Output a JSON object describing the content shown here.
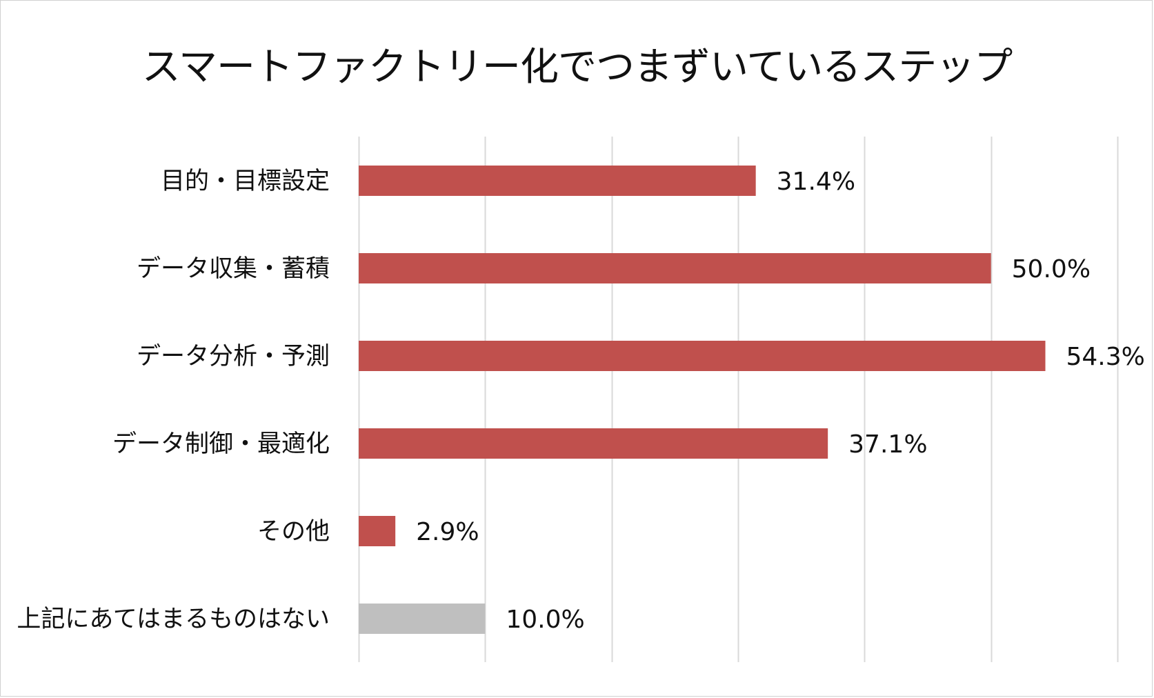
{
  "chart_data": {
    "type": "bar",
    "orientation": "horizontal",
    "title": "スマートファクトリー化でつまずいているステップ",
    "xlabel": "",
    "ylabel": "",
    "xlim": [
      0,
      60
    ],
    "grid": true,
    "legend": "none",
    "categories": [
      "目的・目標設定",
      "データ収集・蓄積",
      "データ分析・予測",
      "データ制御・最適化",
      "その他",
      "上記にあてはまるものはない"
    ],
    "values": [
      31.4,
      50.0,
      54.3,
      37.1,
      2.9,
      10.0
    ],
    "value_labels": [
      "31.4%",
      "50.0%",
      "54.3%",
      "37.1%",
      "2.9%",
      "10.0%"
    ],
    "bar_colors": [
      "#c0504d",
      "#c0504d",
      "#c0504d",
      "#c0504d",
      "#c0504d",
      "#bfbfbf"
    ]
  }
}
